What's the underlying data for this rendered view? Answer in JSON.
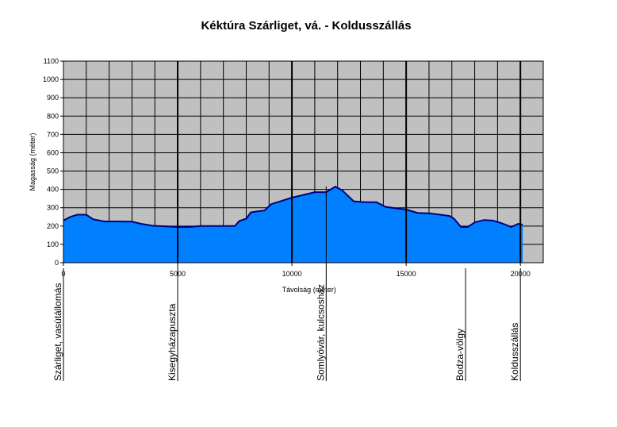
{
  "chart_data": {
    "type": "area",
    "title": "Kéktúra Szárliget, vá. - Koldusszállás",
    "xlabel": "Távolság (méter)",
    "ylabel": "Magasság (méter)",
    "xlim": [
      0,
      21000
    ],
    "ylim": [
      0,
      1100
    ],
    "x_ticks": [
      0,
      5000,
      10000,
      15000,
      20000
    ],
    "y_ticks": [
      0,
      100,
      200,
      300,
      400,
      500,
      600,
      700,
      800,
      900,
      1000,
      1100
    ],
    "grid": true,
    "x": [
      0,
      300,
      600,
      1000,
      1300,
      1800,
      2300,
      3000,
      3400,
      3900,
      4500,
      5000,
      5500,
      6000,
      6500,
      7000,
      7500,
      7700,
      8000,
      8200,
      8500,
      8800,
      9100,
      9500,
      10000,
      10500,
      11000,
      11500,
      11900,
      12200,
      12700,
      13200,
      13700,
      14100,
      14500,
      15000,
      15500,
      16000,
      16500,
      16900,
      17100,
      17400,
      17700,
      18000,
      18400,
      18800,
      19200,
      19600,
      19900,
      20100
    ],
    "values": [
      230,
      250,
      262,
      262,
      237,
      225,
      225,
      224,
      212,
      202,
      198,
      195,
      195,
      200,
      200,
      200,
      200,
      228,
      240,
      275,
      280,
      285,
      320,
      335,
      355,
      370,
      385,
      385,
      415,
      395,
      335,
      330,
      330,
      305,
      298,
      290,
      272,
      270,
      262,
      255,
      240,
      195,
      195,
      220,
      233,
      230,
      215,
      195,
      212,
      208
    ],
    "series": [
      {
        "name": "",
        "color": "#0080ff"
      }
    ],
    "markers": [
      {
        "x": 0,
        "label": "Szárliget, vasútállomás"
      },
      {
        "x": 5000,
        "label": "Kisegyházapuszta"
      },
      {
        "x": 11500,
        "label": "Somlyóvár, kulcsosház"
      },
      {
        "x": 17600,
        "label": "Bodza-völgy"
      },
      {
        "x": 20000,
        "label": "Koldusszállás"
      }
    ],
    "colors": {
      "plot_bg": "#c0c0c0",
      "fill": "#0080ff",
      "outline": "#000080",
      "grid": "#000000"
    }
  }
}
